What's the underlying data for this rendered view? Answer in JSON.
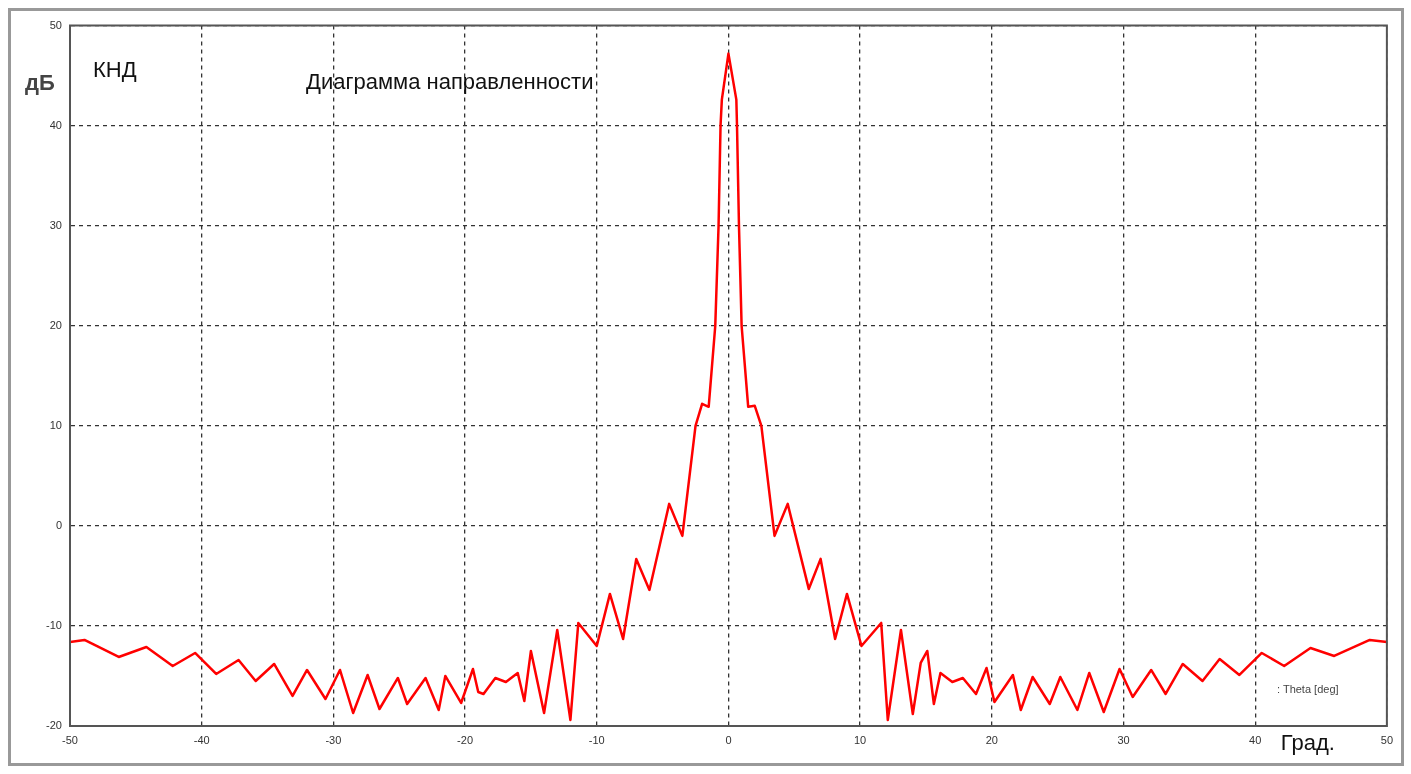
{
  "chart_data": {
    "type": "line",
    "title": "Диаграмма направленности",
    "ylabel": "дБ",
    "xlabel": "Град.",
    "annotations": [
      "КНД",
      ": Theta [deg]"
    ],
    "x": [
      -50,
      -48.9,
      -46.3,
      -44.2,
      -42.2,
      -40.5,
      -38.9,
      -37.2,
      -35.9,
      -34.5,
      -33.1,
      -32.0,
      -30.6,
      -29.5,
      -28.5,
      -27.4,
      -26.5,
      -25.1,
      -24.4,
      -23.0,
      -22.0,
      -21.5,
      -20.3,
      -19.4,
      -19.0,
      -18.6,
      -17.7,
      -16.9,
      -16.0,
      -15.5,
      -15.0,
      -14.0,
      -13.0,
      -12.0,
      -11.4,
      -10.0,
      -9.0,
      -8.0,
      -7.0,
      -6.0,
      -4.5,
      -3.5,
      -2.5,
      -2.0,
      -1.5,
      -1.0,
      -0.75,
      -0.6,
      -0.5,
      0,
      0.6,
      0.65,
      0.8,
      1.0,
      1.5,
      2.0,
      2.5,
      3.5,
      4.5,
      6.1,
      7.0,
      8.1,
      9.0,
      10.1,
      11.6,
      12.1,
      13.1,
      14.0,
      14.6,
      15.1,
      15.6,
      16.1,
      17.0,
      17.8,
      18.8,
      19.6,
      20.2,
      21.6,
      22.2,
      23.1,
      24.4,
      25.2,
      26.5,
      27.4,
      28.5,
      29.7,
      30.7,
      32.1,
      33.2,
      34.5,
      36.0,
      37.3,
      38.8,
      40.5,
      42.2,
      44.2,
      46.0,
      48.7,
      50
    ],
    "series": [
      {
        "color": "#ff0000",
        "values": [
          -11.6,
          -11.4,
          -13.1,
          -12.1,
          -14.0,
          -12.7,
          -14.8,
          -13.4,
          -15.5,
          -13.8,
          -17.0,
          -14.4,
          -17.3,
          -14.4,
          -18.7,
          -14.9,
          -18.3,
          -15.2,
          -17.8,
          -15.2,
          -18.4,
          -15.0,
          -17.7,
          -14.3,
          -16.6,
          -16.8,
          -15.2,
          -15.6,
          -14.7,
          -17.5,
          -12.5,
          -18.7,
          -10.4,
          -19.4,
          -9.7,
          -12.0,
          -6.8,
          -11.3,
          -3.3,
          -6.4,
          2.2,
          -1.0,
          10.0,
          12.2,
          11.9,
          20,
          30,
          40,
          42.6,
          47.2,
          42.6,
          40,
          30,
          20,
          11.9,
          12.0,
          10.0,
          -1.0,
          2.2,
          -6.3,
          -3.3,
          -11.3,
          -6.8,
          -12.0,
          -9.7,
          -19.4,
          -10.4,
          -18.8,
          -13.7,
          -12.5,
          -17.8,
          -14.7,
          -15.6,
          -15.2,
          -16.8,
          -14.2,
          -17.6,
          -14.9,
          -18.4,
          -15.1,
          -17.8,
          -15.1,
          -18.4,
          -14.7,
          -18.6,
          -14.3,
          -17.1,
          -14.4,
          -16.8,
          -13.8,
          -15.5,
          -13.3,
          -14.9,
          -12.7,
          -14.0,
          -12.2,
          -13.0,
          -11.4,
          -11.6
        ]
      }
    ],
    "xlim": [
      -50,
      50
    ],
    "xticks": [
      -50,
      -40,
      -30,
      -20,
      -10,
      0,
      10,
      20,
      30,
      40,
      50
    ],
    "ylim": [
      -20,
      50
    ],
    "yticks": [
      -20,
      -10,
      0,
      10,
      20,
      30,
      40,
      50
    ],
    "grid": true,
    "legend": false,
    "line_style": "solid",
    "marker": "none"
  }
}
